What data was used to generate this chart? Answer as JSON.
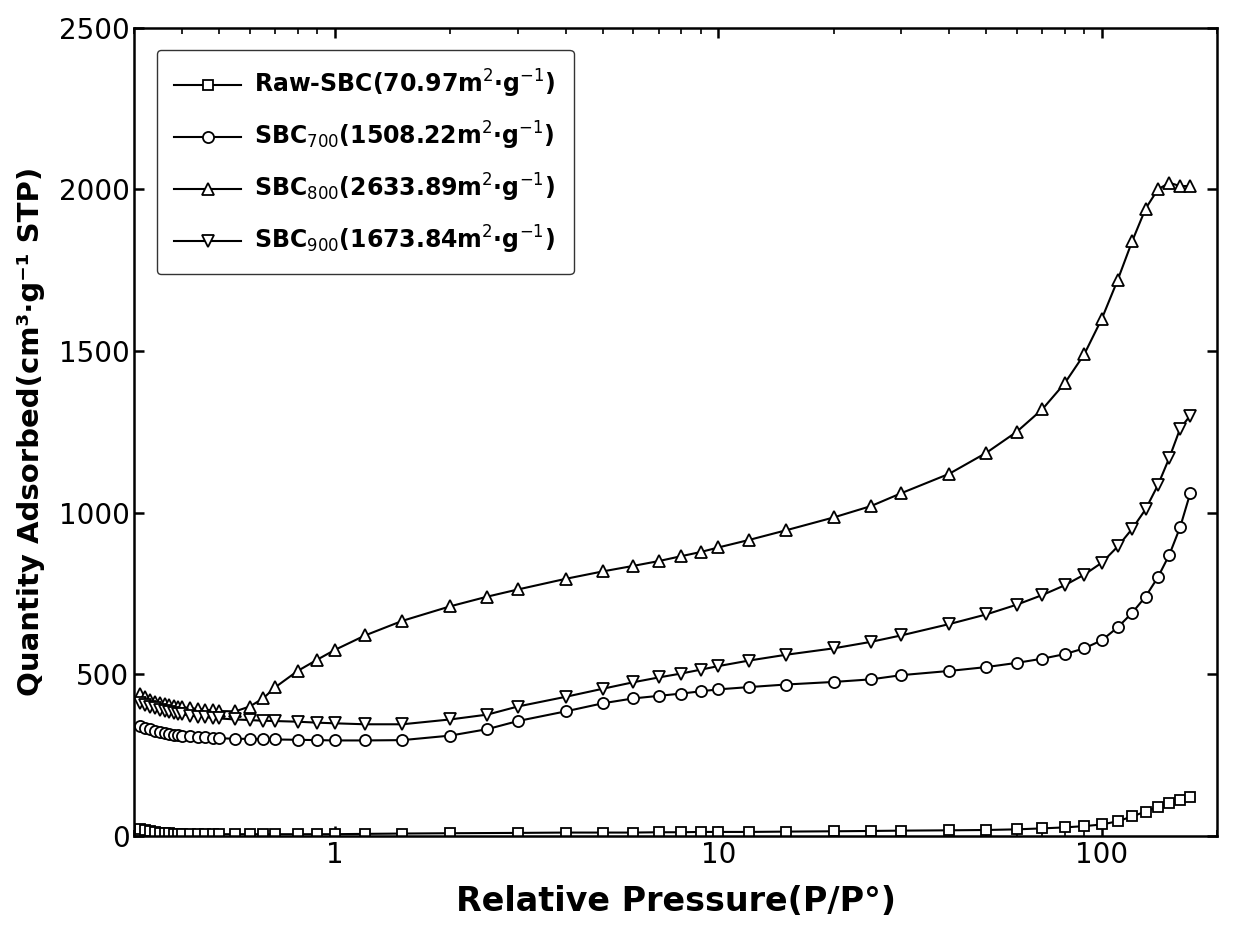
{
  "xlabel": "Relative Pressure(P/P°)",
  "ylabel": "Quantity Adsorbed(cm³·g⁻¹ STP)",
  "xlim_log": [
    0.3,
    200
  ],
  "ylim": [
    0,
    2500
  ],
  "yticks": [
    0,
    500,
    1000,
    1500,
    2000,
    2500
  ],
  "xticks": [
    1,
    10,
    100
  ],
  "background_color": "#ffffff",
  "line_color": "#000000",
  "series": [
    {
      "label": "Raw-SBC(70.97m$^2$·g$^{-1}$)",
      "marker": "s",
      "x": [
        0.31,
        0.32,
        0.33,
        0.34,
        0.35,
        0.36,
        0.37,
        0.38,
        0.39,
        0.4,
        0.42,
        0.44,
        0.46,
        0.48,
        0.5,
        0.55,
        0.6,
        0.65,
        0.7,
        0.8,
        0.9,
        1.0,
        1.2,
        1.5,
        2.0,
        3.0,
        4.0,
        5.0,
        6.0,
        7.0,
        8.0,
        9.0,
        10.0,
        12.0,
        15.0,
        20.0,
        25.0,
        30.0,
        40.0,
        50.0,
        60.0,
        70.0,
        80.0,
        90.0,
        100.0,
        110.0,
        120.0,
        130.0,
        140.0,
        150.0,
        160.0,
        170.0
      ],
      "y": [
        20,
        18,
        15,
        12,
        10,
        9,
        8,
        7,
        7,
        6,
        6,
        5,
        5,
        5,
        5,
        5,
        5,
        5,
        5,
        5,
        5,
        5,
        6,
        7,
        8,
        9,
        10,
        10,
        10,
        11,
        11,
        12,
        12,
        12,
        13,
        14,
        15,
        16,
        17,
        18,
        20,
        23,
        26,
        30,
        35,
        45,
        60,
        75,
        90,
        100,
        110,
        120
      ]
    },
    {
      "label": "SBC$_{700}$(1508.22m$^2$·g$^{-1}$)",
      "marker": "o",
      "x": [
        0.31,
        0.32,
        0.33,
        0.34,
        0.35,
        0.36,
        0.37,
        0.38,
        0.39,
        0.4,
        0.42,
        0.44,
        0.46,
        0.48,
        0.5,
        0.55,
        0.6,
        0.65,
        0.7,
        0.8,
        0.9,
        1.0,
        1.2,
        1.5,
        2.0,
        2.5,
        3.0,
        4.0,
        5.0,
        6.0,
        7.0,
        8.0,
        9.0,
        10.0,
        12.0,
        15.0,
        20.0,
        25.0,
        30.0,
        40.0,
        50.0,
        60.0,
        70.0,
        80.0,
        90.0,
        100.0,
        110.0,
        120.0,
        130.0,
        140.0,
        150.0,
        160.0,
        170.0
      ],
      "y": [
        340,
        335,
        330,
        325,
        320,
        318,
        315,
        313,
        311,
        310,
        308,
        306,
        305,
        303,
        302,
        300,
        300,
        299,
        298,
        297,
        296,
        295,
        295,
        296,
        310,
        330,
        355,
        385,
        410,
        425,
        433,
        440,
        447,
        453,
        460,
        468,
        476,
        484,
        497,
        510,
        522,
        535,
        548,
        562,
        580,
        605,
        645,
        690,
        740,
        800,
        870,
        955,
        1060
      ]
    },
    {
      "label": "SBC$_{800}$(2633.89m$^2$·g$^{-1}$)",
      "marker": "^",
      "x": [
        0.31,
        0.32,
        0.33,
        0.34,
        0.35,
        0.36,
        0.37,
        0.38,
        0.39,
        0.4,
        0.42,
        0.44,
        0.46,
        0.48,
        0.5,
        0.55,
        0.6,
        0.65,
        0.7,
        0.8,
        0.9,
        1.0,
        1.2,
        1.5,
        2.0,
        2.5,
        3.0,
        4.0,
        5.0,
        6.0,
        7.0,
        8.0,
        9.0,
        10.0,
        12.0,
        15.0,
        20.0,
        25.0,
        30.0,
        40.0,
        50.0,
        60.0,
        70.0,
        80.0,
        90.0,
        100.0,
        110.0,
        120.0,
        130.0,
        140.0,
        150.0,
        160.0,
        170.0
      ],
      "y": [
        440,
        430,
        420,
        415,
        410,
        408,
        405,
        402,
        400,
        398,
        395,
        392,
        390,
        388,
        386,
        385,
        400,
        425,
        460,
        510,
        545,
        575,
        620,
        665,
        710,
        740,
        762,
        795,
        818,
        835,
        850,
        865,
        878,
        892,
        915,
        945,
        985,
        1020,
        1060,
        1120,
        1185,
        1250,
        1320,
        1400,
        1490,
        1600,
        1720,
        1840,
        1940,
        2000,
        2020,
        2010,
        2010
      ]
    },
    {
      "label": "SBC$_{900}$(1673.84m$^2$·g$^{-1}$)",
      "marker": "v",
      "x": [
        0.31,
        0.32,
        0.33,
        0.34,
        0.35,
        0.36,
        0.37,
        0.38,
        0.39,
        0.4,
        0.42,
        0.44,
        0.46,
        0.48,
        0.5,
        0.55,
        0.6,
        0.65,
        0.7,
        0.8,
        0.9,
        1.0,
        1.2,
        1.5,
        2.0,
        2.5,
        3.0,
        4.0,
        5.0,
        6.0,
        7.0,
        8.0,
        9.0,
        10.0,
        12.0,
        15.0,
        20.0,
        25.0,
        30.0,
        40.0,
        50.0,
        60.0,
        70.0,
        80.0,
        90.0,
        100.0,
        110.0,
        120.0,
        130.0,
        140.0,
        150.0,
        160.0,
        170.0
      ],
      "y": [
        410,
        405,
        400,
        395,
        390,
        387,
        384,
        381,
        378,
        376,
        372,
        369,
        367,
        365,
        363,
        360,
        358,
        356,
        355,
        353,
        350,
        348,
        345,
        345,
        360,
        375,
        400,
        430,
        455,
        475,
        490,
        502,
        514,
        525,
        542,
        560,
        580,
        600,
        620,
        655,
        685,
        715,
        745,
        775,
        808,
        845,
        895,
        950,
        1010,
        1085,
        1170,
        1260,
        1300
      ]
    }
  ]
}
